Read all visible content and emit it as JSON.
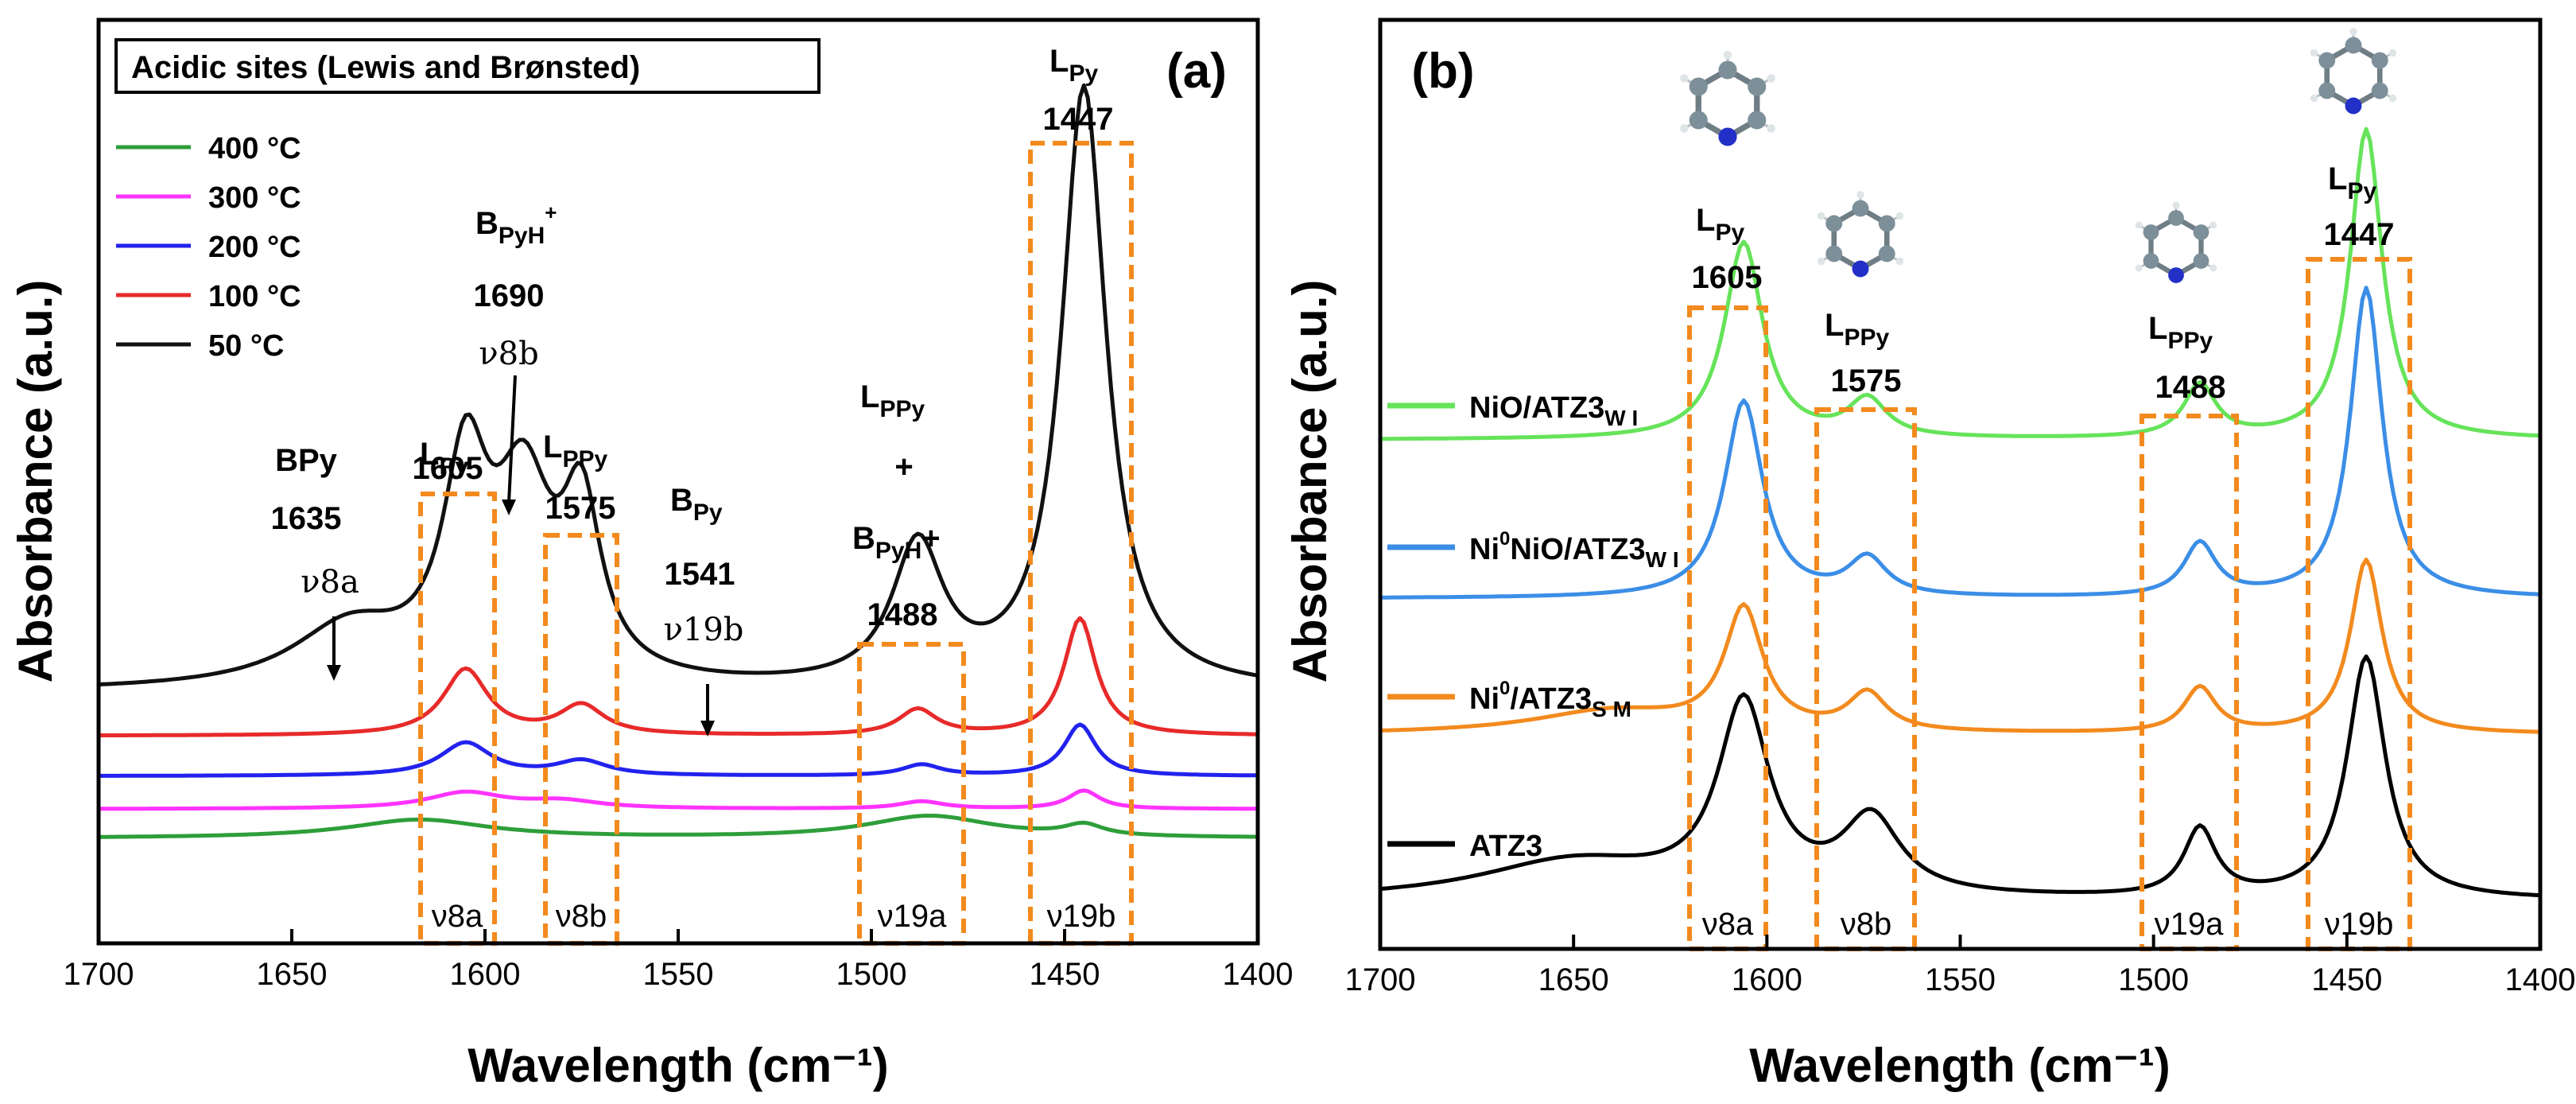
{
  "chart_data": [
    {
      "panel_label": "(a)",
      "type": "line",
      "title": "Acidic sites (Lewis and Brønsted)",
      "xlabel": "Wavelength (cm⁻¹)",
      "ylabel": "Absorbance (a.u.)",
      "xlim": [
        1700,
        1400
      ],
      "x_ticks": [
        "1700",
        "1650",
        "1600",
        "1550",
        "1500",
        "1450",
        "1400"
      ],
      "series": [
        {
          "name": "400 °C",
          "color": "#2e9e3a",
          "baseline": 0.05,
          "peaks": [
            [
              1617,
              0.025,
              22
            ],
            [
              1485,
              0.03,
              20
            ],
            [
              1445,
              0.015,
              6
            ]
          ]
        },
        {
          "name": "300 °C",
          "color": "#ff33ff",
          "baseline": 0.09,
          "peaks": [
            [
              1605,
              0.022,
              12
            ],
            [
              1580,
              0.01,
              12
            ],
            [
              1487,
              0.01,
              7
            ],
            [
              1445,
              0.025,
              5
            ]
          ]
        },
        {
          "name": "200 °C",
          "color": "#2222ee",
          "baseline": 0.135,
          "peaks": [
            [
              1605,
              0.045,
              8
            ],
            [
              1575,
              0.02,
              8
            ],
            [
              1487,
              0.015,
              6
            ],
            [
              1446,
              0.07,
              5
            ]
          ]
        },
        {
          "name": "100 °C",
          "color": "#e82a2a",
          "baseline": 0.19,
          "peaks": [
            [
              1605,
              0.09,
              7
            ],
            [
              1575,
              0.04,
              7
            ],
            [
              1488,
              0.035,
              6
            ],
            [
              1446,
              0.16,
              5
            ]
          ]
        },
        {
          "name": "50 °C",
          "color": "#111111",
          "baseline": 0.25,
          "peaks": [
            [
              1635,
              0.08,
              18
            ],
            [
              1605,
              0.28,
              7
            ],
            [
              1590,
              0.25,
              9
            ],
            [
              1575,
              0.22,
              6
            ],
            [
              1488,
              0.19,
              8
            ],
            [
              1445,
              0.82,
              7
            ]
          ]
        }
      ],
      "annotations": {
        "bpy": {
          "label": "BPy",
          "value": "1635",
          "mode": "ν8a"
        },
        "lpy_1605": {
          "main": "L",
          "sub": "Py",
          "value": "1605"
        },
        "bpyh": {
          "main": "B",
          "sub": "PyH",
          "sup": "+",
          "value": "1690",
          "mode": "ν8b"
        },
        "lppy_1575": {
          "main": "L",
          "sub": "PPy",
          "value": "1575"
        },
        "bpy_1541": {
          "main": "B",
          "sub": "Py",
          "value": "1541",
          "mode": "ν19b"
        },
        "combo": {
          "main1": "L",
          "sub1": "PPy",
          "plus": "+",
          "main2": "B",
          "sub2": "PyH",
          "sup2": "+",
          "value": "1488"
        },
        "lpy_1447": {
          "main": "L",
          "sub": "Py",
          "value": "1447"
        },
        "box_labels": [
          "ν8a",
          "ν8b",
          "ν19a",
          "ν19b"
        ]
      }
    },
    {
      "panel_label": "(b)",
      "type": "line",
      "xlabel": "Wavelength (cm⁻¹)",
      "ylabel": "Absorbance (a.u.)",
      "xlim": [
        1700,
        1400
      ],
      "x_ticks": [
        "1700",
        "1650",
        "1600",
        "1550",
        "1500",
        "1450",
        "1400"
      ],
      "series": [
        {
          "name": "ATZ3",
          "label_main": "ATZ3",
          "color": "#000000",
          "baseline": 0.05,
          "peaks": [
            [
              1650,
              0.05,
              30
            ],
            [
              1606,
              0.25,
              8
            ],
            [
              1573,
              0.1,
              9
            ],
            [
              1488,
              0.09,
              5
            ],
            [
              1445,
              0.32,
              6
            ]
          ]
        },
        {
          "name": "Ni0/ATZ3SM",
          "label_main": "Ni",
          "label_sup": "0",
          "label_rest": "/ATZ3",
          "label_sub": "S M",
          "color": "#f28a1e",
          "baseline": 0.27,
          "peaks": [
            [
              1640,
              0.03,
              25
            ],
            [
              1606,
              0.16,
              6
            ],
            [
              1574,
              0.05,
              6
            ],
            [
              1488,
              0.06,
              5
            ],
            [
              1445,
              0.23,
              5
            ]
          ]
        },
        {
          "name": "Ni0NiO/ATZ3WI",
          "label_main": "Ni",
          "label_sup": "0",
          "label_rest": "NiO/ATZ3",
          "label_sub": "W I",
          "color": "#3b8ee6",
          "baseline": 0.45,
          "peaks": [
            [
              1606,
              0.26,
              6
            ],
            [
              1574,
              0.05,
              6
            ],
            [
              1488,
              0.07,
              5
            ],
            [
              1445,
              0.41,
              5
            ]
          ]
        },
        {
          "name": "NiO/ATZ3WI",
          "label_main": "NiO/ATZ3",
          "label_sub": "W I",
          "color": "#66e35a",
          "baseline": 0.66,
          "peaks": [
            [
              1606,
              0.26,
              6
            ],
            [
              1574,
              0.05,
              6
            ],
            [
              1488,
              0.07,
              5
            ],
            [
              1445,
              0.41,
              5
            ]
          ]
        }
      ],
      "annotations": {
        "lpy_1605": {
          "main": "L",
          "sub": "Py",
          "value": "1605"
        },
        "lppy_1575": {
          "main": "L",
          "sub": "PPy",
          "value": "1575"
        },
        "lppy_1488": {
          "main": "L",
          "sub": "PPy",
          "value": "1488"
        },
        "lpy_1447": {
          "main": "L",
          "sub": "Py",
          "value": "1447"
        },
        "box_labels": [
          "ν8a",
          "ν8b",
          "ν19a",
          "ν19b"
        ]
      }
    }
  ],
  "colors": {
    "box": "#f28a1e",
    "axis": "#000000",
    "atom_c": "#7d8f99",
    "atom_n": "#2230c8",
    "bond": "#9aa4aa"
  }
}
